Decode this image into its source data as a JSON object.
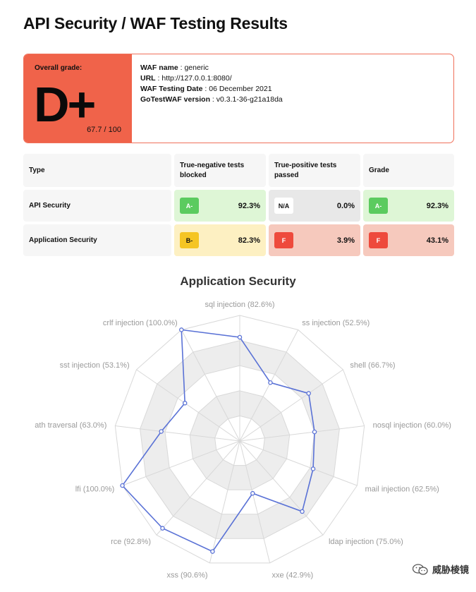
{
  "page": {
    "title": "API Security / WAF Testing Results"
  },
  "overall": {
    "label": "Overall grade:",
    "grade": "D+",
    "score": "67.7 / 100"
  },
  "info": {
    "waf_name_label": "WAF name",
    "waf_name": "generic",
    "url_label": "URL",
    "url": "http://127.0.0.1:8080/",
    "date_label": "WAF Testing Date",
    "date": "06 December 2021",
    "version_label": "GoTestWAF version",
    "version": "v0.3.1-36-g21a18da"
  },
  "table": {
    "headers": [
      "Type",
      "True-negative tests blocked",
      "True-positive tests passed",
      "Grade"
    ],
    "rows": [
      {
        "type": "API Security",
        "tn_grade": "A-",
        "tn_value": "92.3%",
        "tn_color": "#def6d6",
        "tp_grade": "N/A",
        "tp_value": "0.0%",
        "tp_color": "#e8e8e8",
        "grade": "A-",
        "grade_value": "92.3%",
        "grade_color": "#def6d6"
      },
      {
        "type": "Application Security",
        "tn_grade": "B-",
        "tn_value": "82.3%",
        "tn_color": "#fdf0c2",
        "tp_grade": "F",
        "tp_value": "3.9%",
        "tp_color": "#f6c9bd",
        "grade": "F",
        "grade_value": "43.1%",
        "grade_color": "#f6c9bd"
      }
    ]
  },
  "chart_data": {
    "type": "radar",
    "title": "Application Security",
    "categories": [
      "sql injection (82.6%)",
      "ss injection (52.5%)",
      "shell (66.7%)",
      "nosql injection (60.0%)",
      "mail injection (62.5%)",
      "ldap injection (75.0%)",
      "xxe (42.9%)",
      "xss (90.6%)",
      "rce (92.8%)",
      "lfi (100.0%)",
      "ath traversal (63.0%)",
      "sst injection (53.1%)",
      "crlf injection (100.0%)"
    ],
    "values": [
      82.6,
      52.5,
      66.7,
      60.0,
      62.5,
      75.0,
      42.9,
      90.6,
      92.8,
      100.0,
      63.0,
      53.1,
      100.0
    ],
    "range": [
      0,
      100
    ],
    "rings": 5,
    "line_color": "#5a72d6",
    "grid_color": "#d8d8d8",
    "band_color": "#ededed"
  },
  "watermark": {
    "text": "威胁棱镜"
  }
}
